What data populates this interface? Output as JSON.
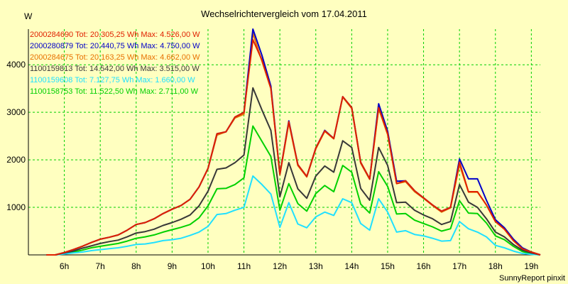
{
  "chart_data": {
    "type": "line",
    "title": "Wechselrichtervergleich vom 17.04.2011",
    "ylabel": "W",
    "xlabel": "",
    "footer": "SunnyReport pinxit",
    "xlim": [
      5.0,
      19.25
    ],
    "ylim": [
      0,
      4750
    ],
    "y_ticks": [
      1000,
      2000,
      3000,
      4000
    ],
    "x_ticks": [
      {
        "value": 6,
        "label": "6h"
      },
      {
        "value": 7,
        "label": "7h"
      },
      {
        "value": 8,
        "label": "8h"
      },
      {
        "value": 9,
        "label": "9h"
      },
      {
        "value": 10,
        "label": "10h"
      },
      {
        "value": 11,
        "label": "11h"
      },
      {
        "value": 12,
        "label": "12h"
      },
      {
        "value": 13,
        "label": "13h"
      },
      {
        "value": 14,
        "label": "14h"
      },
      {
        "value": 15,
        "label": "15h"
      },
      {
        "value": 16,
        "label": "16h"
      },
      {
        "value": 17,
        "label": "17h"
      },
      {
        "value": 18,
        "label": "18h"
      },
      {
        "value": 19,
        "label": "19h"
      }
    ],
    "grid": true,
    "legend_position": "top-left",
    "x": [
      5.5,
      5.75,
      6.0,
      6.25,
      6.5,
      6.75,
      7.0,
      7.25,
      7.5,
      7.75,
      8.0,
      8.25,
      8.5,
      8.75,
      9.0,
      9.25,
      9.5,
      9.75,
      10.0,
      10.25,
      10.5,
      10.75,
      11.0,
      11.25,
      11.5,
      11.75,
      12.0,
      12.25,
      12.5,
      12.75,
      13.0,
      13.25,
      13.5,
      13.75,
      14.0,
      14.25,
      14.5,
      14.75,
      15.0,
      15.25,
      15.5,
      15.75,
      16.0,
      16.25,
      16.5,
      16.75,
      17.0,
      17.25,
      17.5,
      17.75,
      18.0,
      18.25,
      18.5,
      18.75,
      19.0,
      19.25
    ],
    "series": [
      {
        "name": "2000284690",
        "legend": "2000284690 Tot: 20.305,25 Wh Max: 4.526,00 W",
        "color": "#e02000",
        "values": [
          0,
          0,
          50,
          110,
          180,
          260,
          330,
          370,
          420,
          520,
          640,
          680,
          760,
          870,
          960,
          1040,
          1170,
          1430,
          1820,
          2550,
          2590,
          2900,
          3000,
          4526,
          4100,
          3500,
          1700,
          2800,
          1900,
          1650,
          2250,
          2610,
          2450,
          3330,
          3100,
          1950,
          1600,
          3100,
          2550,
          1500,
          1560,
          1350,
          1200,
          1050,
          920,
          1000,
          1950,
          1330,
          1330,
          1050,
          700,
          540,
          300,
          130,
          60,
          0
        ]
      },
      {
        "name": "2000280879",
        "legend": "2000280879 Tot: 20.440,75 Wh Max: 4.750,00 W",
        "color": "#0000c8",
        "values": [
          0,
          0,
          50,
          110,
          180,
          260,
          330,
          370,
          420,
          520,
          640,
          680,
          760,
          870,
          960,
          1040,
          1170,
          1430,
          1820,
          2550,
          2590,
          2900,
          3000,
          4750,
          4200,
          3550,
          1700,
          2820,
          1900,
          1650,
          2250,
          2620,
          2450,
          3330,
          3100,
          1950,
          1600,
          3180,
          2600,
          1550,
          1560,
          1350,
          1200,
          1050,
          920,
          1000,
          2020,
          1600,
          1600,
          1150,
          740,
          570,
          330,
          150,
          60,
          0
        ]
      },
      {
        "name": "2000284675",
        "legend": "2000284675 Tot: 20.163,25 Wh Max: 4.662,00 W",
        "color": "#e87000",
        "values": [
          0,
          0,
          50,
          110,
          180,
          260,
          330,
          370,
          420,
          520,
          640,
          680,
          760,
          870,
          960,
          1040,
          1170,
          1430,
          1820,
          2520,
          2590,
          2880,
          2960,
          4662,
          4080,
          3500,
          1680,
          2780,
          1880,
          1640,
          2230,
          2600,
          2440,
          3320,
          3080,
          1930,
          1590,
          3080,
          2530,
          1500,
          1540,
          1330,
          1190,
          1040,
          900,
          990,
          1900,
          1320,
          1320,
          1050,
          700,
          540,
          300,
          130,
          60,
          0
        ]
      },
      {
        "name": "1100159813",
        "legend": "1100159813 Tot: 14.542,00 Wh Max: 3.515,00 W",
        "color": "#383838",
        "values": [
          0,
          0,
          40,
          80,
          140,
          190,
          240,
          280,
          310,
          380,
          460,
          490,
          540,
          620,
          680,
          750,
          840,
          1030,
          1340,
          1800,
          1830,
          1940,
          2100,
          3515,
          3050,
          2620,
          1220,
          1940,
          1390,
          1190,
          1660,
          1870,
          1740,
          2400,
          2260,
          1400,
          1150,
          2260,
          1880,
          1100,
          1110,
          940,
          840,
          760,
          640,
          700,
          1480,
          1110,
          1000,
          760,
          480,
          380,
          220,
          100,
          40,
          0
        ]
      },
      {
        "name": "1100159608",
        "legend": "1100159608 Tot: 7.127,75 Wh Max: 1.660,00 W",
        "color": "#20e0ff",
        "values": [
          0,
          0,
          20,
          40,
          60,
          90,
          110,
          130,
          150,
          180,
          220,
          230,
          260,
          300,
          320,
          350,
          410,
          480,
          600,
          850,
          870,
          940,
          1000,
          1660,
          1480,
          1280,
          580,
          1100,
          650,
          570,
          800,
          900,
          830,
          1180,
          1100,
          660,
          520,
          1180,
          900,
          480,
          510,
          430,
          400,
          350,
          290,
          300,
          700,
          550,
          480,
          380,
          200,
          150,
          80,
          30,
          10,
          0
        ]
      },
      {
        "name": "1100158753",
        "legend": "1100158753 Tot: 11.522,50 Wh Max: 2.711,00 W",
        "color": "#00d000",
        "values": [
          0,
          0,
          30,
          60,
          100,
          150,
          180,
          210,
          240,
          290,
          350,
          380,
          420,
          480,
          530,
          580,
          640,
          780,
          1030,
          1390,
          1400,
          1480,
          1620,
          2711,
          2390,
          2070,
          940,
          1500,
          1080,
          920,
          1290,
          1460,
          1330,
          1880,
          1740,
          1070,
          880,
          1750,
          1440,
          860,
          870,
          730,
          660,
          590,
          500,
          550,
          1140,
          880,
          870,
          670,
          400,
          320,
          180,
          70,
          20,
          0
        ]
      }
    ]
  }
}
